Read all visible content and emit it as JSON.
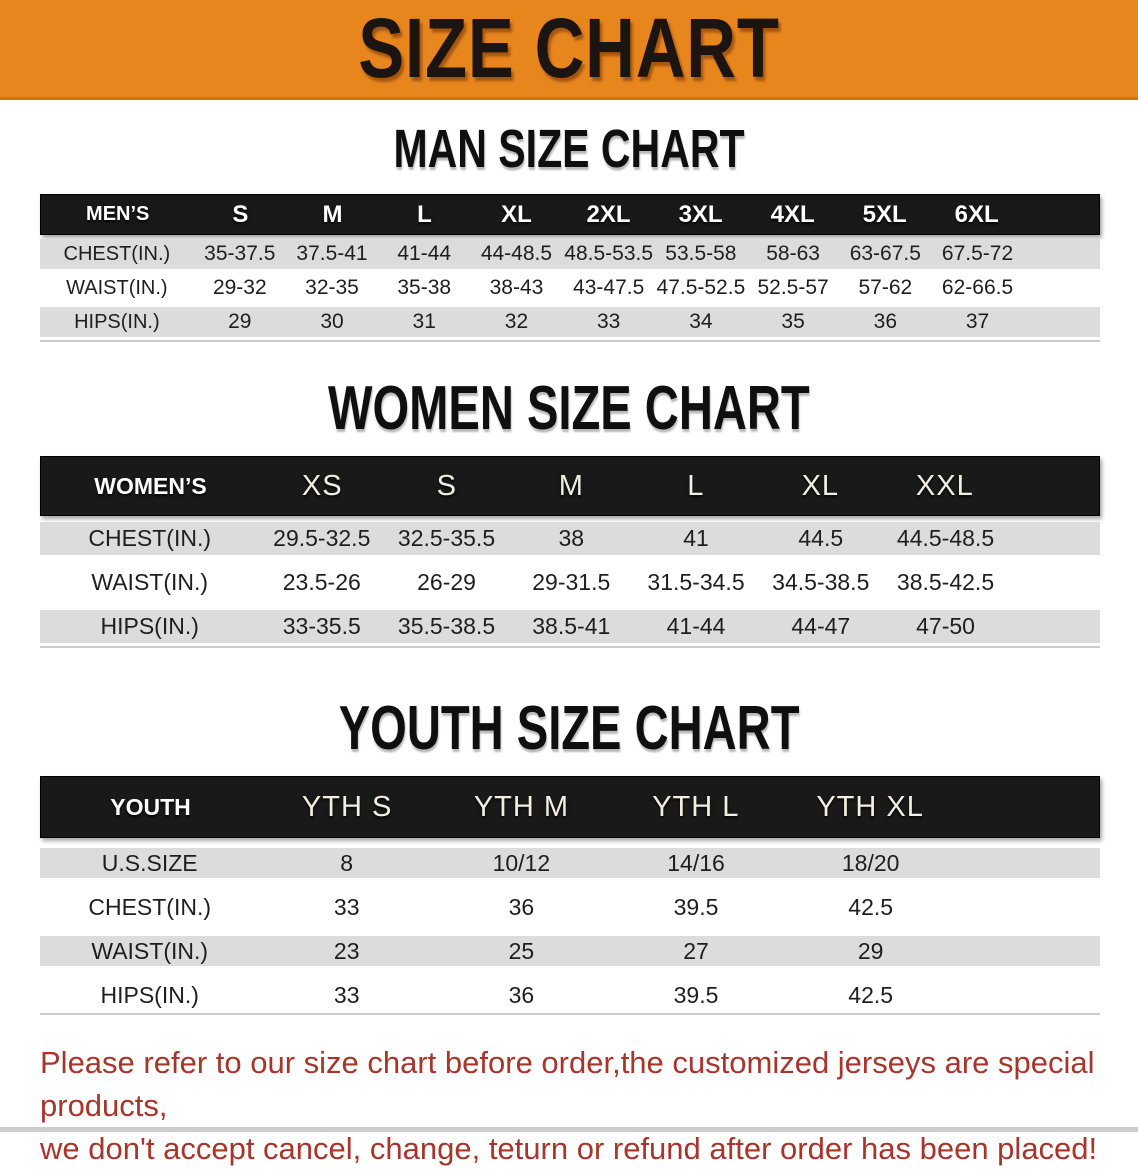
{
  "banner": {
    "title": "SIZE CHART",
    "bg_color": "#e8861e",
    "text_color": "#1c1410"
  },
  "sections": [
    {
      "id": "men",
      "heading": "MAN SIZE CHART",
      "group_label": "MEN’S",
      "columns": [
        "S",
        "M",
        "L",
        "XL",
        "2XL",
        "3XL",
        "4XL",
        "5XL",
        "6XL"
      ],
      "rows": [
        {
          "label": "CHEST(IN.)",
          "values": [
            "35-37.5",
            "37.5-41",
            "41-44",
            "44-48.5",
            "48.5-53.5",
            "53.5-58",
            "58-63",
            "63-67.5",
            "67.5-72"
          ]
        },
        {
          "label": "WAIST(IN.)",
          "values": [
            "29-32",
            "32-35",
            "35-38",
            "38-43",
            "43-47.5",
            "47.5-52.5",
            "52.5-57",
            "57-62",
            "62-66.5"
          ]
        },
        {
          "label": "HIPS(IN.)",
          "values": [
            "29",
            "30",
            "31",
            "32",
            "33",
            "34",
            "35",
            "36",
            "37"
          ]
        }
      ]
    },
    {
      "id": "women",
      "heading": "WOMEN SIZE CHART",
      "group_label": "WOMEN’S",
      "columns": [
        "XS",
        "S",
        "M",
        "L",
        "XL",
        "XXL"
      ],
      "rows": [
        {
          "label": "CHEST(IN.)",
          "values": [
            "29.5-32.5",
            "32.5-35.5",
            "38",
            "41",
            "44.5",
            "44.5-48.5"
          ]
        },
        {
          "label": "WAIST(IN.)",
          "values": [
            "23.5-26",
            "26-29",
            "29-31.5",
            "31.5-34.5",
            "34.5-38.5",
            "38.5-42.5"
          ]
        },
        {
          "label": "HIPS(IN.)",
          "values": [
            "33-35.5",
            "35.5-38.5",
            "38.5-41",
            "41-44",
            "44-47",
            "47-50"
          ]
        }
      ]
    },
    {
      "id": "youth",
      "heading": "YOUTH SIZE CHART",
      "group_label": "YOUTH",
      "columns": [
        "YTH S",
        "YTH M",
        "YTH L",
        "YTH XL"
      ],
      "rows": [
        {
          "label": "U.S.SIZE",
          "values": [
            "8",
            "10/12",
            "14/16",
            "18/20"
          ]
        },
        {
          "label": "CHEST(IN.)",
          "values": [
            "33",
            "36",
            "39.5",
            "42.5"
          ]
        },
        {
          "label": "WAIST(IN.)",
          "values": [
            "23",
            "25",
            "27",
            "29"
          ]
        },
        {
          "label": "HIPS(IN.)",
          "values": [
            "33",
            "36",
            "39.5",
            "42.5"
          ]
        }
      ]
    }
  ],
  "disclaimer": {
    "line1": "Please refer to our size chart before order,the customized jerseys are special products,",
    "line2": "we don't accept cancel, change, teturn or refund after order has been placed!",
    "color": "#a8352b"
  }
}
